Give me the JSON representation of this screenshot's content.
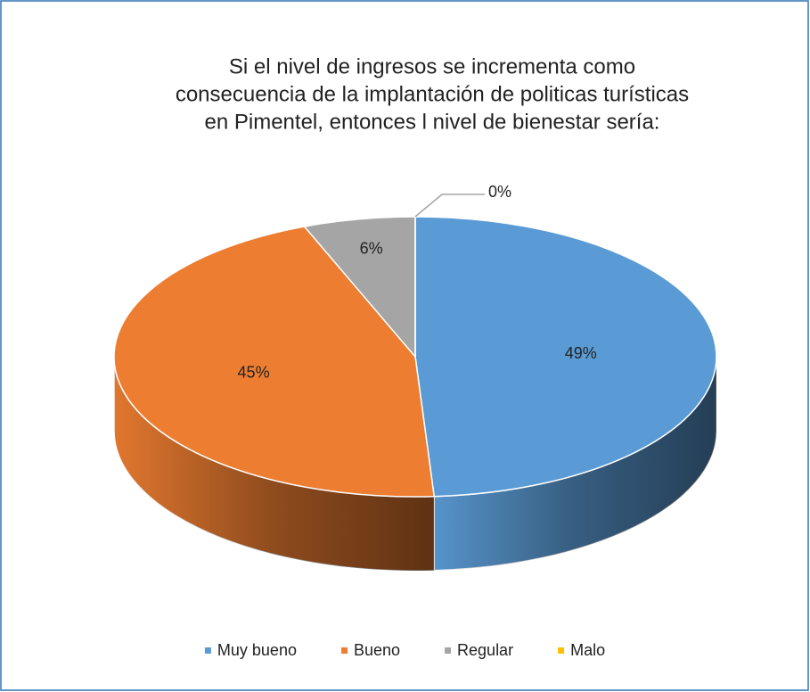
{
  "chart_data": {
    "type": "pie",
    "title": [
      "Si el nivel de ingresos se incrementa como",
      "consecuencia de la implantación de politicas turísticas",
      "en Pimentel, entonces l nivel de bienestar sería:"
    ],
    "categories": [
      "Muy bueno",
      "Bueno",
      "Regular",
      "Malo"
    ],
    "values": [
      49,
      45,
      6,
      0
    ],
    "value_labels": [
      "49%",
      "45%",
      "6%",
      "0%"
    ],
    "colors": [
      "#5b9bd5",
      "#ed7d31",
      "#a5a5a5",
      "#ffc000"
    ],
    "legend": "bottom"
  }
}
